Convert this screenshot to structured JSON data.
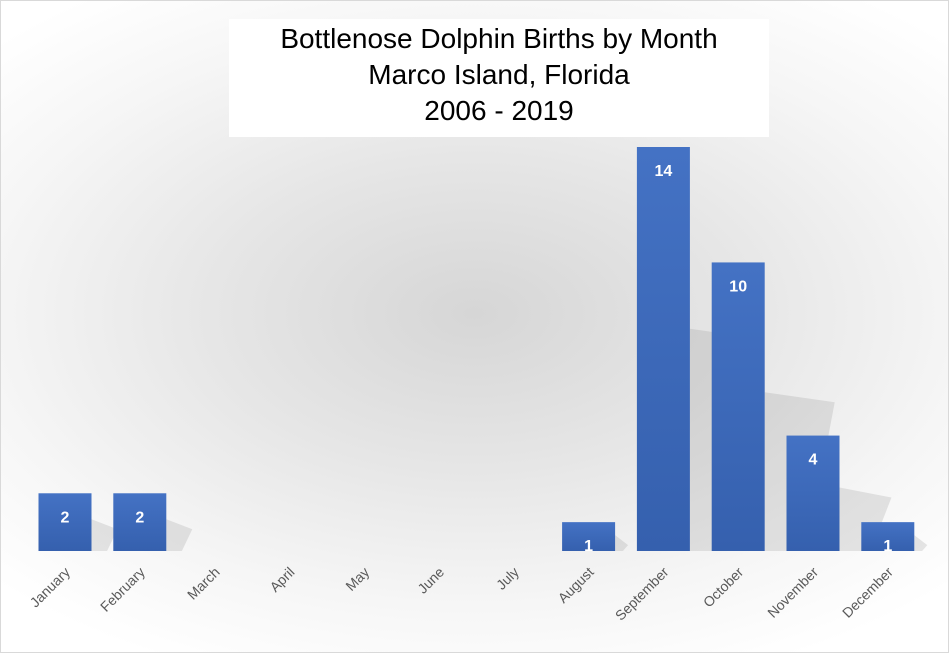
{
  "chart_data": {
    "type": "bar",
    "title_lines": [
      "Bottlenose Dolphin Births by Month",
      "Marco Island, Florida",
      "2006 - 2019"
    ],
    "categories": [
      "January",
      "February",
      "March",
      "April",
      "May",
      "June",
      "July",
      "August",
      "September",
      "October",
      "November",
      "December"
    ],
    "values": [
      2,
      2,
      0,
      0,
      0,
      0,
      0,
      1,
      14,
      10,
      4,
      1
    ],
    "xlabel": "",
    "ylabel": "",
    "ylim": [
      0,
      14
    ],
    "data_labels": true,
    "grid": false,
    "bar_color": "#4472C4",
    "label_color": "#FFFFFF",
    "axis_label_color": "#595959"
  }
}
